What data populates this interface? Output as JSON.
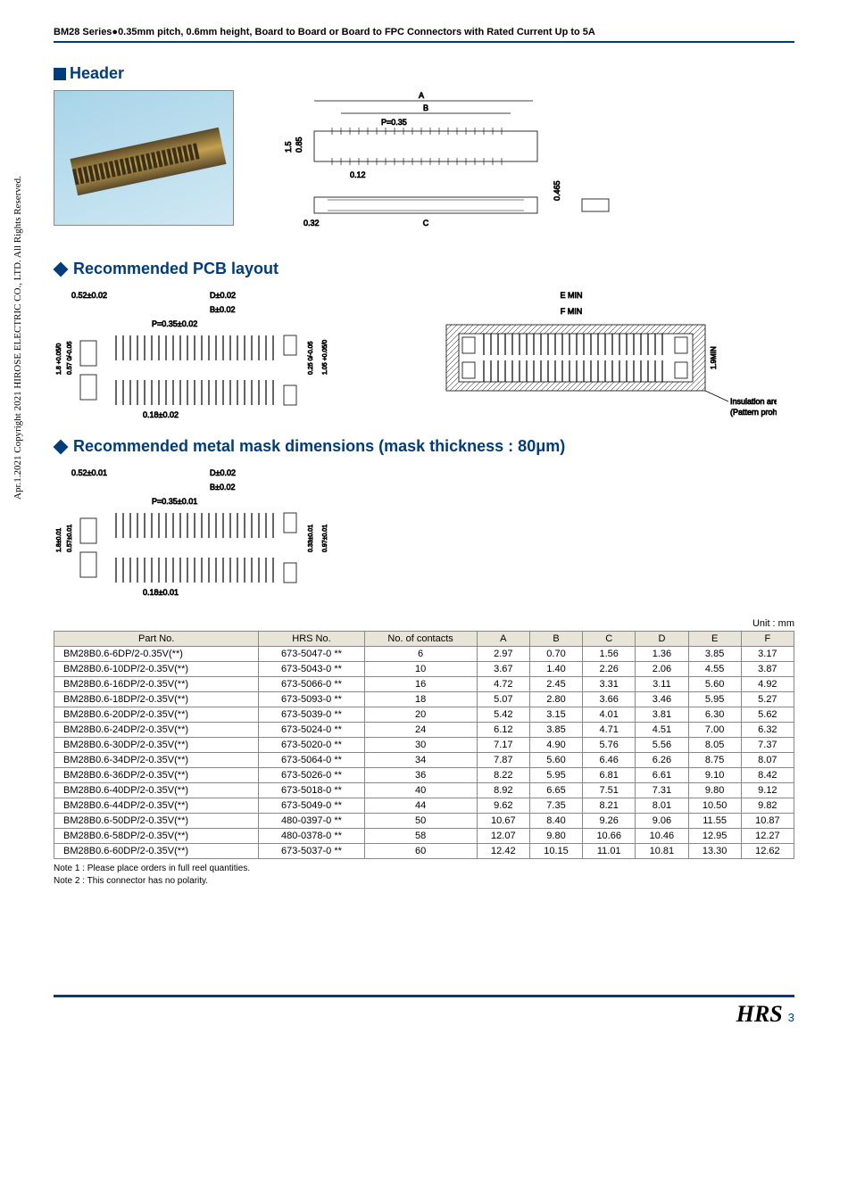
{
  "page_header": "BM28 Series●0.35mm pitch, 0.6mm height, Board to Board or Board to FPC Connectors with Rated Current Up to 5A",
  "copyright": "Apr.1.2021 Copyright 2021 HIROSE ELECTRIC CO., LTD. All Rights Reserved.",
  "sections": {
    "header": "Header",
    "pcb": "Recommended PCB layout",
    "mask": "Recommended metal mask dimensions (mask thickness : 80μm)"
  },
  "header_dwg": {
    "labels": {
      "A": "A",
      "B": "B",
      "C": "C",
      "P": "P=0.35"
    },
    "dims": {
      "h1": "1.5",
      "h2": "0.85",
      "w1": "0.12",
      "w2": "0.32",
      "side": "0.465"
    }
  },
  "pcb_dwg": {
    "left": {
      "d1": "0.52±0.02",
      "d2": "D±0.02",
      "d3": "B±0.02",
      "d4": "P=0.35±0.02",
      "d5": "0.18±0.02",
      "v1": "1.8 +0.05/0",
      "v2": "0.57 0/-0.05",
      "v3": "0.25 0/-0.05",
      "v4": "1.05 +0.05/0"
    },
    "right": {
      "e": "E MIN",
      "f": "F MIN",
      "h": "1.9MIN",
      "ins1": "Insulation area",
      "ins2": "(Pattern prohibited area)"
    }
  },
  "mask_dwg": {
    "d1": "0.52±0.01",
    "d2": "D±0.02",
    "d3": "B±0.02",
    "d4": "P=0.35±0.01",
    "d5": "0.18±0.01",
    "v1": "1.8±0.01",
    "v2": "0.57±0.01",
    "v3": "0.33±0.01",
    "v4": "0.97±0.01"
  },
  "table": {
    "unit": "Unit : mm",
    "columns": [
      "Part No.",
      "HRS No.",
      "No. of contacts",
      "A",
      "B",
      "C",
      "D",
      "E",
      "F"
    ],
    "rows": [
      [
        "BM28B0.6-6DP/2-0.35V(**)",
        "673-5047-0 **",
        "6",
        "2.97",
        "0.70",
        "1.56",
        "1.36",
        "3.85",
        "3.17"
      ],
      [
        "BM28B0.6-10DP/2-0.35V(**)",
        "673-5043-0 **",
        "10",
        "3.67",
        "1.40",
        "2.26",
        "2.06",
        "4.55",
        "3.87"
      ],
      [
        "BM28B0.6-16DP/2-0.35V(**)",
        "673-5066-0 **",
        "16",
        "4.72",
        "2.45",
        "3.31",
        "3.11",
        "5.60",
        "4.92"
      ],
      [
        "BM28B0.6-18DP/2-0.35V(**)",
        "673-5093-0 **",
        "18",
        "5.07",
        "2.80",
        "3.66",
        "3.46",
        "5.95",
        "5.27"
      ],
      [
        "BM28B0.6-20DP/2-0.35V(**)",
        "673-5039-0 **",
        "20",
        "5.42",
        "3.15",
        "4.01",
        "3.81",
        "6.30",
        "5.62"
      ],
      [
        "BM28B0.6-24DP/2-0.35V(**)",
        "673-5024-0 **",
        "24",
        "6.12",
        "3.85",
        "4.71",
        "4.51",
        "7.00",
        "6.32"
      ],
      [
        "BM28B0.6-30DP/2-0.35V(**)",
        "673-5020-0 **",
        "30",
        "7.17",
        "4.90",
        "5.76",
        "5.56",
        "8.05",
        "7.37"
      ],
      [
        "BM28B0.6-34DP/2-0.35V(**)",
        "673-5064-0 **",
        "34",
        "7.87",
        "5.60",
        "6.46",
        "6.26",
        "8.75",
        "8.07"
      ],
      [
        "BM28B0.6-36DP/2-0.35V(**)",
        "673-5026-0 **",
        "36",
        "8.22",
        "5.95",
        "6.81",
        "6.61",
        "9.10",
        "8.42"
      ],
      [
        "BM28B0.6-40DP/2-0.35V(**)",
        "673-5018-0 **",
        "40",
        "8.92",
        "6.65",
        "7.51",
        "7.31",
        "9.80",
        "9.12"
      ],
      [
        "BM28B0.6-44DP/2-0.35V(**)",
        "673-5049-0 **",
        "44",
        "9.62",
        "7.35",
        "8.21",
        "8.01",
        "10.50",
        "9.82"
      ],
      [
        "BM28B0.6-50DP/2-0.35V(**)",
        "480-0397-0 **",
        "50",
        "10.67",
        "8.40",
        "9.26",
        "9.06",
        "11.55",
        "10.87"
      ],
      [
        "BM28B0.6-58DP/2-0.35V(**)",
        "480-0378-0 **",
        "58",
        "12.07",
        "9.80",
        "10.66",
        "10.46",
        "12.95",
        "12.27"
      ],
      [
        "BM28B0.6-60DP/2-0.35V(**)",
        "673-5037-0 **",
        "60",
        "12.42",
        "10.15",
        "11.01",
        "10.81",
        "13.30",
        "12.62"
      ]
    ]
  },
  "notes": {
    "n1": "Note 1 : Please place orders in full reel quantities.",
    "n2": "Note 2 : This connector has no polarity."
  },
  "footer": {
    "logo": "HRS",
    "page": "3"
  }
}
